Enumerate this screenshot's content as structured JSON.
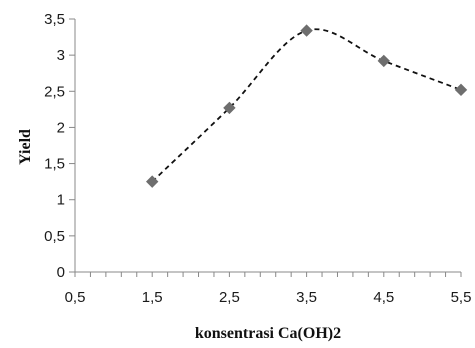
{
  "chart_data": {
    "type": "line",
    "title": "",
    "xlabel": "konsentrasi Ca(OH)2",
    "ylabel": "Yield",
    "xlim": [
      0.5,
      5.5
    ],
    "ylim": [
      0,
      3.5
    ],
    "x_ticks": [
      "0,5",
      "1,5",
      "2,5",
      "3,5",
      "4,5",
      "5,5"
    ],
    "x_tick_values": [
      0.5,
      1.5,
      2.5,
      3.5,
      4.5,
      5.5
    ],
    "y_ticks": [
      "0",
      "0,5",
      "1",
      "1,5",
      "2",
      "2,5",
      "3",
      "3,5"
    ],
    "y_tick_values": [
      0,
      0.5,
      1,
      1.5,
      2,
      2.5,
      3,
      3.5
    ],
    "grid": false,
    "legend": "none",
    "series": [
      {
        "x": [
          1.5,
          2.5,
          3.5,
          4.5,
          5.5
        ],
        "values": [
          1.25,
          2.27,
          3.34,
          2.92,
          2.52
        ],
        "marker": "diamond",
        "line_style": "dashed",
        "color": "#6e6e6e",
        "line_color": "#111111"
      }
    ]
  }
}
